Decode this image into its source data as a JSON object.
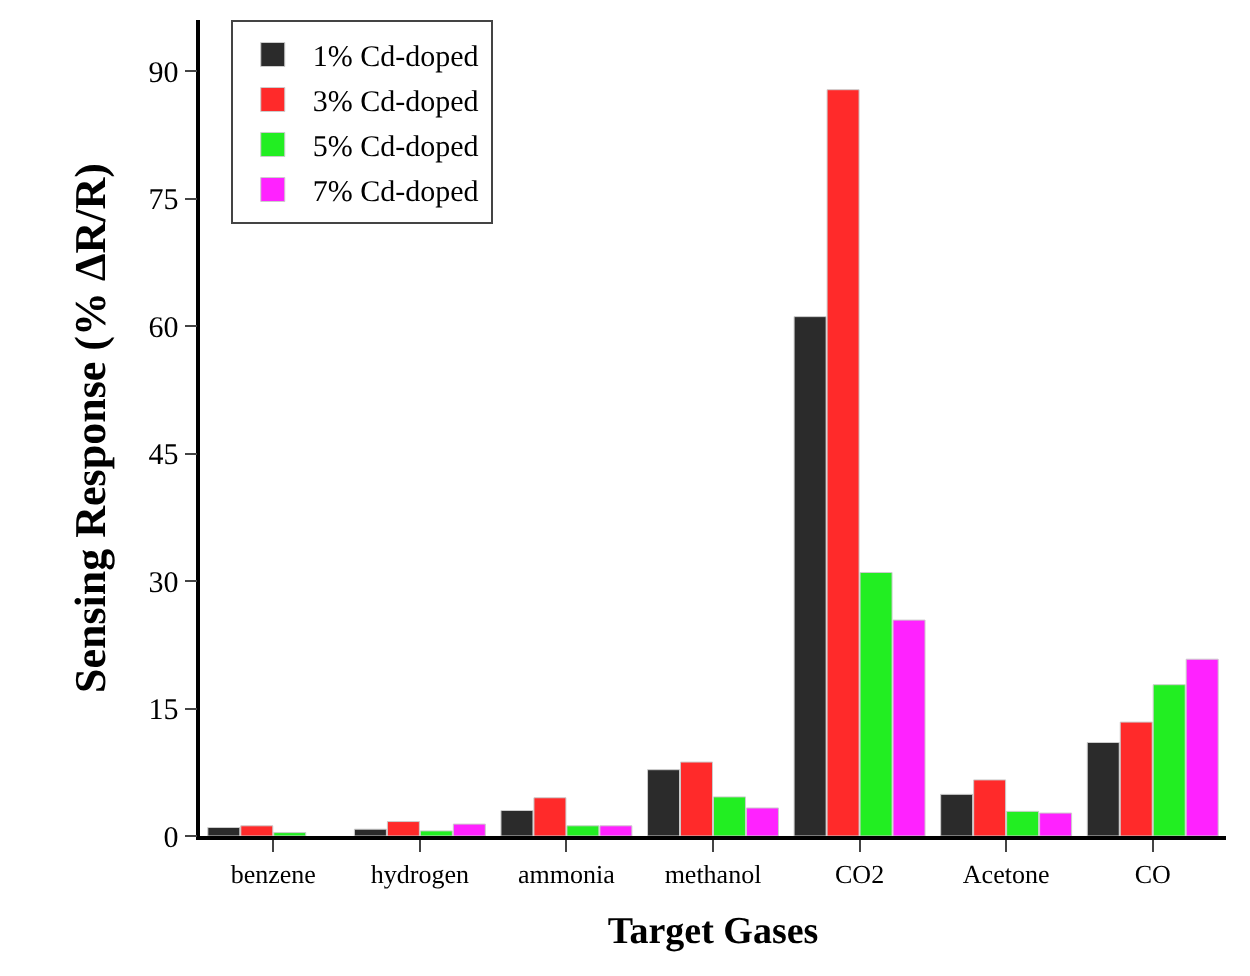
{
  "chart_data": {
    "type": "bar",
    "xlabel": "Target Gases",
    "ylabel": "Sensing Response (% ΔR/R)",
    "categories": [
      "benzene",
      "hydrogen",
      "ammonia",
      "methanol",
      "CO2",
      "Acetone",
      "CO"
    ],
    "series": [
      {
        "name": "1% Cd-doped",
        "color": "#2b2b2b",
        "values": [
          1.0,
          0.8,
          3.0,
          7.8,
          61.1,
          4.9,
          11.0
        ]
      },
      {
        "name": "3% Cd-doped",
        "color": "#ff2a2a",
        "values": [
          1.2,
          1.7,
          4.5,
          8.7,
          87.8,
          6.6,
          13.4
        ]
      },
      {
        "name": "5% Cd-doped",
        "color": "#22ee22",
        "values": [
          0.4,
          0.6,
          1.2,
          4.6,
          31.0,
          2.9,
          17.8
        ]
      },
      {
        "name": "7% Cd-doped",
        "color": "#ff22ff",
        "values": [
          null,
          1.4,
          1.2,
          3.3,
          25.4,
          2.7,
          20.8
        ]
      }
    ],
    "ylim": [
      0,
      96
    ],
    "yticks": [
      0,
      15,
      30,
      45,
      60,
      75,
      90
    ],
    "legend": "top left"
  }
}
